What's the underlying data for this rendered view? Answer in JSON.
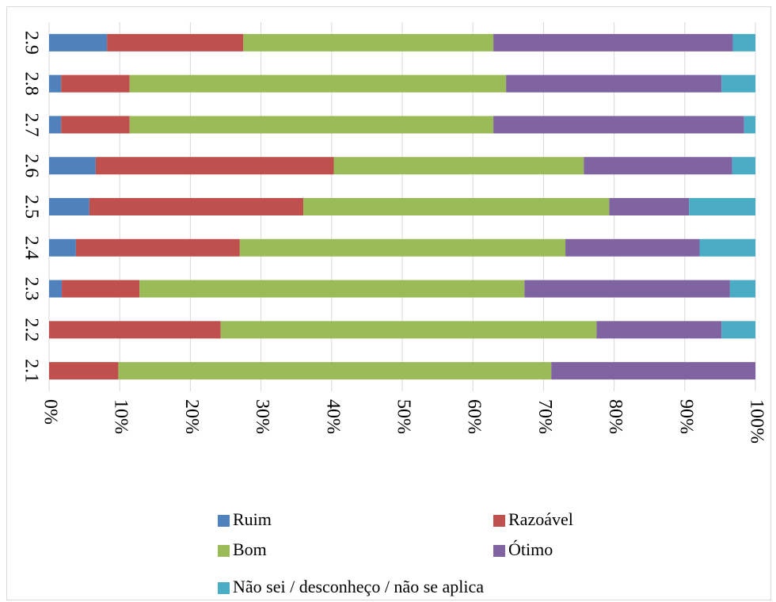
{
  "chart_data": {
    "type": "bar",
    "orientation": "horizontal",
    "stacking": "percent",
    "title": "",
    "xlabel": "",
    "ylabel": "",
    "categories": [
      "2.9",
      "2.8",
      "2.7",
      "2.6",
      "2.5",
      "2.4",
      "2.3",
      "2.2",
      "2.1"
    ],
    "series": [
      {
        "name": "Ruim",
        "color": "#4f81bd",
        "values": [
          8.2,
          1.7,
          1.7,
          6.6,
          5.7,
          3.8,
          1.8,
          0,
          0
        ]
      },
      {
        "name": "Razoável",
        "color": "#c0504d",
        "values": [
          19.3,
          9.7,
          9.7,
          33.7,
          30.3,
          23.2,
          11.0,
          24.3,
          9.8
        ]
      },
      {
        "name": "Bom",
        "color": "#9bbb59",
        "values": [
          35.4,
          53.3,
          51.5,
          35.4,
          43.3,
          46.1,
          54.5,
          53.2,
          61.3
        ]
      },
      {
        "name": "Ótimo",
        "color": "#8064a2",
        "values": [
          33.9,
          30.5,
          35.5,
          21.0,
          11.3,
          19.0,
          29.1,
          17.7,
          28.9
        ]
      },
      {
        "name": "Não sei / desconheço / não se aplica",
        "color": "#4bacc6",
        "values": [
          3.2,
          4.8,
          1.6,
          3.3,
          9.4,
          7.9,
          3.6,
          4.8,
          0
        ]
      }
    ],
    "x_ticks": [
      "0%",
      "10%",
      "20%",
      "30%",
      "40%",
      "50%",
      "60%",
      "70%",
      "80%",
      "90%",
      "100%"
    ],
    "xlim": [
      0,
      100
    ],
    "grid": true,
    "legend_position": "bottom"
  }
}
